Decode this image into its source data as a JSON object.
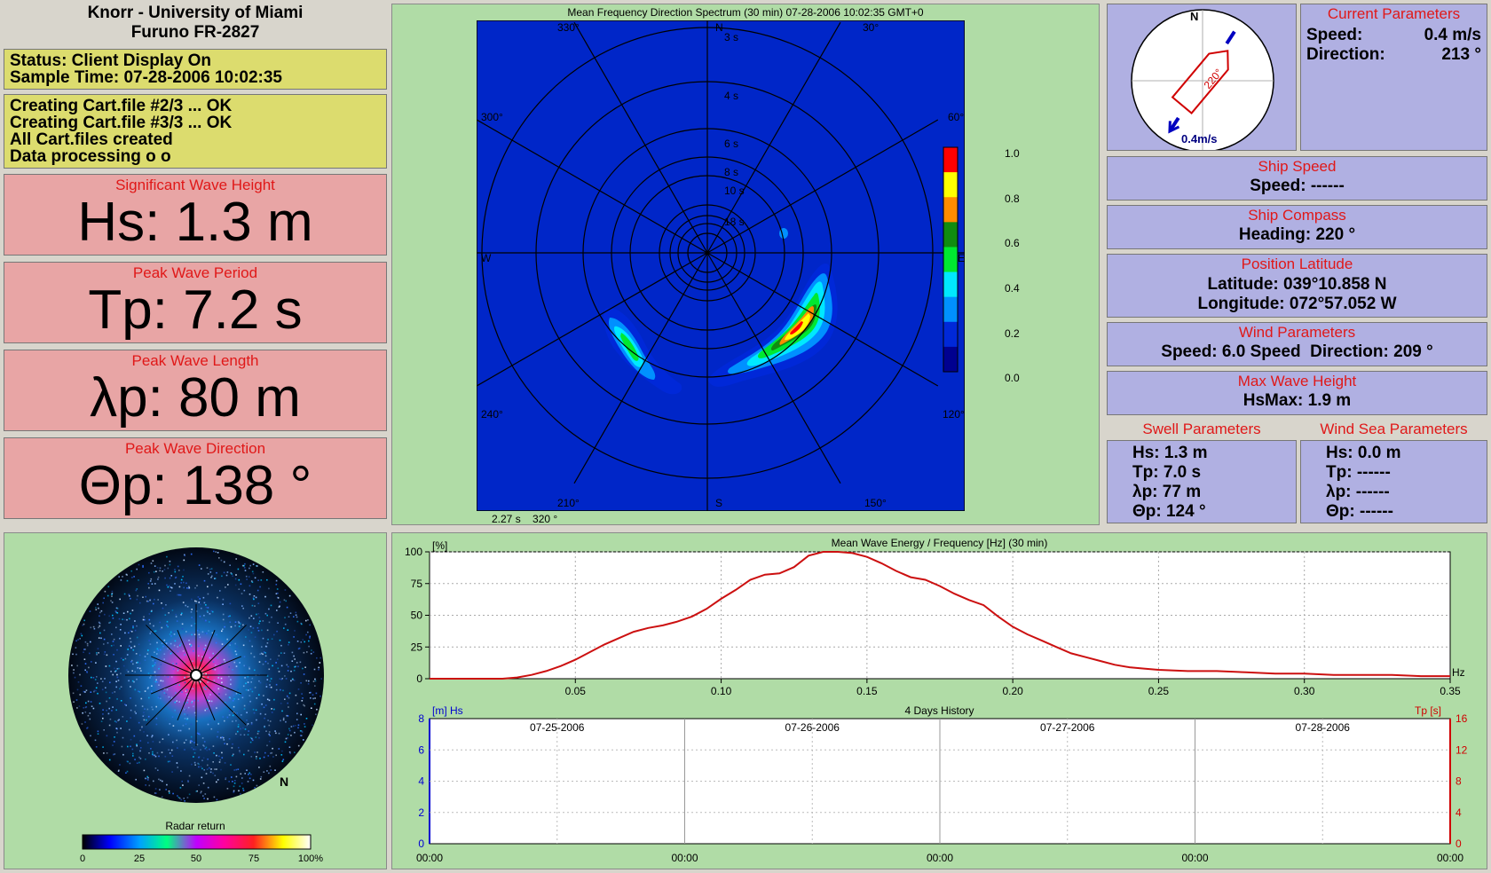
{
  "header": {
    "line1": "Knorr - University of Miami",
    "line2": "Furuno FR-2827"
  },
  "status": {
    "line1": "Status: Client Display On",
    "line2": "Sample Time: 07-28-2006 10:02:35"
  },
  "log": [
    "Creating Cart.file #2/3 ... OK",
    "Creating Cart.file #3/3 ... OK",
    "All Cart.files created",
    "Data processing o o"
  ],
  "hs": {
    "title": "Significant Wave Height",
    "value": "Hs: 1.3 m"
  },
  "tp": {
    "title": "Peak Wave Period",
    "value": "Tp: 7.2 s"
  },
  "lp": {
    "title": "Peak Wave Length",
    "value": "λp: 80 m"
  },
  "dp": {
    "title": "Peak Wave Direction",
    "value": "Θp: 138 °"
  },
  "spectrum": {
    "title": "Mean Frequency Direction Spectrum (30 min) 07-28-2006 10:02:35 GMT+0",
    "compass": {
      "n": "N",
      "s": "S",
      "e": "E",
      "w": "W"
    },
    "bearings": [
      "30°",
      "60°",
      "120°",
      "150°",
      "210°",
      "240°",
      "300°",
      "330°"
    ],
    "periods": [
      "3 s",
      "4 s",
      "6 s",
      "8 s",
      "10 s",
      "18 s"
    ],
    "cursor": "2.27 s    320 °",
    "colorbar": [
      "1.0",
      "0.8",
      "0.6",
      "0.4",
      "0.2",
      "0.0"
    ],
    "colors": [
      "#000090",
      "#0028d8",
      "#0090ff",
      "#00e8ff",
      "#00e830",
      "#108c10",
      "#ff8c00",
      "#ffff00",
      "#ff0000"
    ]
  },
  "current_compass": {
    "n": "N",
    "heading": "220°",
    "speed": "0.4m/s"
  },
  "current": {
    "title": "Current Parameters",
    "speed_label": "Speed:",
    "speed_value": "0.4 m/s",
    "dir_label": "Direction:",
    "dir_value": "213 °"
  },
  "ship_speed": {
    "title": "Ship Speed",
    "value": "Speed: ------"
  },
  "ship_compass": {
    "title": "Ship Compass",
    "value": "Heading: 220 °"
  },
  "position": {
    "title": "Position Latitude",
    "lat": "Latitude: 039°10.858 N",
    "lon": "Longitude: 072°57.052 W"
  },
  "wind": {
    "title": "Wind Parameters",
    "value": "Speed: 6.0 Speed  Direction: 209 °"
  },
  "max_wave": {
    "title": "Max Wave Height",
    "value": "HsMax: 1.9 m"
  },
  "swell": {
    "title": "Swell Parameters",
    "hs": "Hs: 1.3 m",
    "tp": "Tp: 7.0 s",
    "lp": "λp: 77 m",
    "dp": "Θp: 124 °"
  },
  "windsea": {
    "title": "Wind Sea Parameters",
    "hs": "Hs: 0.0 m",
    "tp": "Tp: ------",
    "lp": "λp: ------",
    "dp": "Θp: ------"
  },
  "radar": {
    "north": "N",
    "title": "Radar return",
    "ticks": [
      "0",
      "25",
      "50",
      "75",
      "100%"
    ]
  },
  "energy": {
    "title": "Mean Wave Energy / Frequency [Hz] (30 min)",
    "ylabel": "[%]",
    "xunit": "Hz",
    "yticks": [
      "100",
      "75",
      "50",
      "25",
      "0"
    ],
    "xticks": [
      "0.05",
      "0.10",
      "0.15",
      "0.20",
      "0.25",
      "0.30",
      "0.35"
    ]
  },
  "chart_data": {
    "type": "line",
    "title": "Mean Wave Energy / Frequency [Hz] (30 min)",
    "xlabel": "Hz",
    "ylabel": "[%]",
    "xlim": [
      0,
      0.35
    ],
    "ylim": [
      0,
      100
    ],
    "grid": true,
    "x": [
      0.0,
      0.01,
      0.02,
      0.025,
      0.03,
      0.035,
      0.04,
      0.045,
      0.05,
      0.055,
      0.06,
      0.065,
      0.07,
      0.075,
      0.08,
      0.085,
      0.09,
      0.095,
      0.1,
      0.105,
      0.11,
      0.115,
      0.12,
      0.125,
      0.13,
      0.135,
      0.14,
      0.145,
      0.15,
      0.155,
      0.16,
      0.165,
      0.17,
      0.175,
      0.18,
      0.185,
      0.19,
      0.195,
      0.2,
      0.205,
      0.21,
      0.215,
      0.22,
      0.225,
      0.23,
      0.235,
      0.24,
      0.245,
      0.25,
      0.26,
      0.27,
      0.28,
      0.29,
      0.3,
      0.31,
      0.32,
      0.33,
      0.34,
      0.35
    ],
    "y": [
      0,
      0,
      0,
      0,
      1,
      3,
      6,
      10,
      15,
      21,
      27,
      32,
      37,
      40,
      42,
      45,
      49,
      55,
      63,
      70,
      78,
      82,
      83,
      88,
      97,
      100,
      100,
      99,
      96,
      91,
      85,
      80,
      78,
      73,
      67,
      62,
      58,
      49,
      41,
      35,
      30,
      25,
      20,
      17,
      14,
      11,
      9,
      8,
      7,
      6,
      6,
      5,
      4,
      4,
      3,
      3,
      3,
      2,
      2
    ]
  },
  "history": {
    "title": "4 Days History",
    "left_label": "[m] Hs",
    "right_label": "Tp [s]",
    "left_ticks": [
      "8",
      "6",
      "4",
      "2",
      "0"
    ],
    "right_ticks": [
      "16",
      "12",
      "8",
      "4",
      "0"
    ],
    "days": [
      "07-25-2006",
      "07-26-2006",
      "07-27-2006",
      "07-28-2006"
    ],
    "times": [
      "00:00",
      "00:00",
      "00:00",
      "00:00",
      "00:00"
    ]
  }
}
